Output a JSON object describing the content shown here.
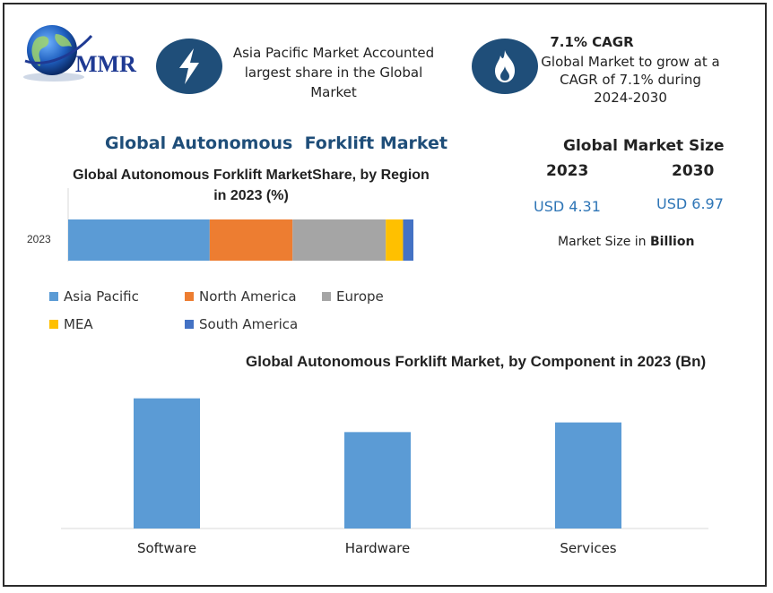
{
  "logo": {
    "text": "MMR"
  },
  "header": {
    "asia_text": "Asia Pacific Market Accounted largest share in the Global Market",
    "cagr_title": "7.1% CAGR",
    "cagr_text": "Global Market to grow at a CAGR of 7.1% during 2024-2030",
    "icons": [
      "lightning-icon",
      "flame-icon"
    ],
    "icon_color": "#1f4e79"
  },
  "main_title": "Global Autonomous  Forklift Market",
  "market_size": {
    "title": "Global Market Size",
    "year1": "2023",
    "year2": "2030",
    "value1": "USD 4.31",
    "value2": "USD 6.97",
    "note_prefix": "Market Size in ",
    "note_bold": "Billion"
  },
  "chart_data": [
    {
      "type": "bar",
      "orientation": "horizontal-stacked",
      "title": "Global Autonomous Forklift MarketShare, by Region in 2023 (%)",
      "categories": [
        "2023"
      ],
      "series": [
        {
          "name": "Asia Pacific",
          "values": [
            41
          ],
          "color": "#5b9bd5"
        },
        {
          "name": "North America",
          "values": [
            24
          ],
          "color": "#ed7d31"
        },
        {
          "name": "Europe",
          "values": [
            27
          ],
          "color": "#a5a5a5"
        },
        {
          "name": "MEA",
          "values": [
            5
          ],
          "color": "#ffc000"
        },
        {
          "name": "South America",
          "values": [
            3
          ],
          "color": "#4472c4"
        }
      ],
      "xlim": [
        0,
        100
      ],
      "legend": "bottom"
    },
    {
      "type": "bar",
      "title": "Global Autonomous Forklift Market, by Component in 2023 (Bn)",
      "categories": [
        "Software",
        "Hardware",
        "Services"
      ],
      "values": [
        1.62,
        1.2,
        1.32
      ],
      "color": "#5b9bd5",
      "ylim": [
        0,
        1.65
      ]
    }
  ]
}
